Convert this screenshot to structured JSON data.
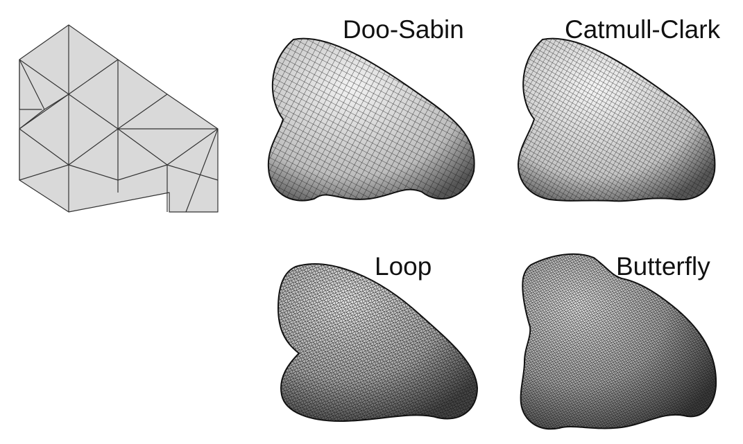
{
  "figure": {
    "panels": [
      {
        "id": "control-mesh",
        "label": ""
      },
      {
        "id": "doo-sabin",
        "label": "Doo-Sabin"
      },
      {
        "id": "catmull-clark",
        "label": "Catmull-Clark"
      },
      {
        "id": "loop",
        "label": "Loop"
      },
      {
        "id": "butterfly",
        "label": "Butterfly"
      }
    ]
  },
  "colors": {
    "mesh_fill": "#d9d9d9",
    "mesh_edge": "#333333",
    "surface_fill": "#cfcfcf",
    "surface_line": "#1a1a1a"
  }
}
